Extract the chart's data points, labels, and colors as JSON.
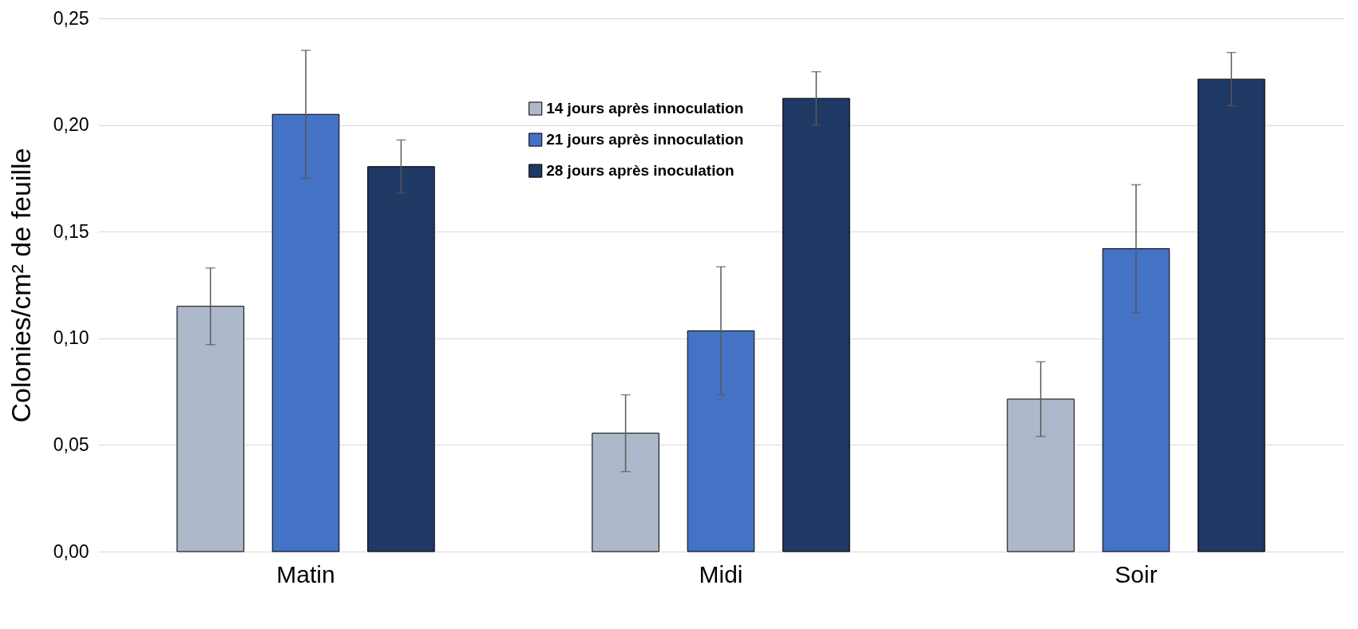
{
  "chart_data": {
    "type": "bar",
    "ylabel": "Colonies/cm² de feuille",
    "categories": [
      "Matin",
      "Midi",
      "Soir"
    ],
    "series": [
      {
        "name": "14 jours après innoculation",
        "color": "#adb9ca",
        "values": [
          0.115,
          0.0555,
          0.0715
        ],
        "errors": [
          0.018,
          0.018,
          0.0175
        ]
      },
      {
        "name": "21 jours après innoculation",
        "color": "#4472c4",
        "values": [
          0.205,
          0.1035,
          0.142
        ],
        "errors": [
          0.03,
          0.03,
          0.03
        ]
      },
      {
        "name": "28 jours après inoculation",
        "color": "#203864",
        "values": [
          0.1805,
          0.2125,
          0.2215
        ],
        "errors": [
          0.0125,
          0.0125,
          0.0125
        ]
      }
    ],
    "ylim": [
      0,
      0.25
    ],
    "yticks": [
      {
        "value": 0,
        "label": "0,00"
      },
      {
        "value": 0.05,
        "label": "0,05"
      },
      {
        "value": 0.1,
        "label": "0,10"
      },
      {
        "value": 0.15,
        "label": "0,15"
      },
      {
        "value": 0.2,
        "label": "0,20"
      },
      {
        "value": 0.25,
        "label": "0,25"
      }
    ],
    "grid": "y",
    "legend": "top"
  }
}
